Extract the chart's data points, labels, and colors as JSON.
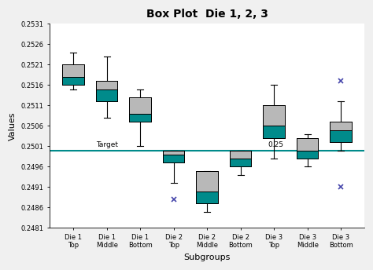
{
  "title": "Box Plot  Die 1, 2, 3",
  "xlabel": "Subgroups",
  "ylabel": "Values",
  "categories": [
    "Die 1\nTop",
    "Die 1\nMiddle",
    "Die 1\nBottom",
    "Die 2\nTop",
    "Die 2\nMiddle",
    "Die 2\nBottom",
    "Die 3\nTop",
    "Die 3\nMiddle",
    "Die 3\nBottom"
  ],
  "target_line": 0.25,
  "target_label": "Target",
  "target_label2": "0.25",
  "ylim": [
    0.2481,
    0.2531
  ],
  "yticks": [
    0.2481,
    0.2486,
    0.2491,
    0.2496,
    0.2501,
    0.2506,
    0.2511,
    0.2516,
    0.2521,
    0.2526,
    0.2531
  ],
  "box_color": "#008B8B",
  "upper_box_color": "#b8b8b8",
  "whisker_color": "#000000",
  "target_color": "#008B8B",
  "outlier_color": "#4444aa",
  "bg_color": "#f0f0f0",
  "plot_bg_color": "#ffffff",
  "boxes": [
    {
      "q1": 0.2516,
      "median": 0.2518,
      "q3": 0.2521,
      "whislo": 0.2515,
      "whishi": 0.2524,
      "fliers_high": [],
      "fliers_low": []
    },
    {
      "q1": 0.2512,
      "median": 0.2515,
      "q3": 0.2517,
      "whislo": 0.2508,
      "whishi": 0.2523,
      "fliers_high": [],
      "fliers_low": []
    },
    {
      "q1": 0.2507,
      "median": 0.2509,
      "q3": 0.2513,
      "whislo": 0.2501,
      "whishi": 0.2515,
      "fliers_high": [],
      "fliers_low": []
    },
    {
      "q1": 0.2497,
      "median": 0.2499,
      "q3": 0.25,
      "whislo": 0.2492,
      "whishi": 0.25,
      "fliers_high": [],
      "fliers_low": [
        0.2488
      ]
    },
    {
      "q1": 0.2487,
      "median": 0.249,
      "q3": 0.2495,
      "whislo": 0.2485,
      "whishi": 0.2495,
      "fliers_high": [],
      "fliers_low": []
    },
    {
      "q1": 0.2496,
      "median": 0.2498,
      "q3": 0.25,
      "whislo": 0.2494,
      "whishi": 0.25,
      "fliers_high": [],
      "fliers_low": []
    },
    {
      "q1": 0.2503,
      "median": 0.2506,
      "q3": 0.2511,
      "whislo": 0.2498,
      "whishi": 0.2516,
      "fliers_high": [],
      "fliers_low": []
    },
    {
      "q1": 0.2498,
      "median": 0.25,
      "q3": 0.2503,
      "whislo": 0.2496,
      "whishi": 0.2504,
      "fliers_high": [],
      "fliers_low": []
    },
    {
      "q1": 0.2502,
      "median": 0.2505,
      "q3": 0.2507,
      "whislo": 0.25,
      "whishi": 0.2512,
      "fliers_high": [
        0.2517
      ],
      "fliers_low": [
        0.2491
      ]
    }
  ]
}
